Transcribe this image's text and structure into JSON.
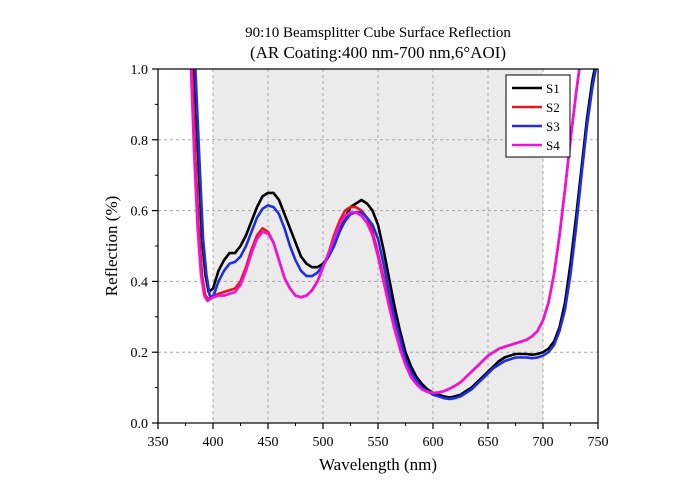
{
  "chart_data": {
    "type": "line",
    "title": "90:10 Beamsplitter Cube Surface Reflection",
    "subtitle": "(AR Coating:400 nm-700 nm,6°AOI)",
    "xlabel": "Wavelength (nm)",
    "ylabel": "Reflection (%)",
    "xlim": [
      350,
      750
    ],
    "ylim": [
      0.0,
      1.0
    ],
    "xticks": [
      350,
      400,
      450,
      500,
      550,
      600,
      650,
      700,
      750
    ],
    "xtick_labels": [
      "350",
      "400",
      "450",
      "500",
      "550",
      "600",
      "650",
      "700",
      "750"
    ],
    "yticks": [
      0.0,
      0.2,
      0.4,
      0.6,
      0.8,
      1.0
    ],
    "ytick_labels": [
      "0.0",
      "0.2",
      "0.4",
      "0.6",
      "0.8",
      "1.0"
    ],
    "grid": true,
    "shaded_band": [
      400,
      700
    ],
    "legend_position": "top-right",
    "series": [
      {
        "name": "S1",
        "color": "#000000",
        "points": [
          [
            383,
            1.0
          ],
          [
            387,
            0.72
          ],
          [
            390,
            0.52
          ],
          [
            393,
            0.42
          ],
          [
            396,
            0.37
          ],
          [
            400,
            0.38
          ],
          [
            405,
            0.43
          ],
          [
            410,
            0.46
          ],
          [
            415,
            0.48
          ],
          [
            420,
            0.48
          ],
          [
            425,
            0.5
          ],
          [
            430,
            0.53
          ],
          [
            435,
            0.57
          ],
          [
            440,
            0.61
          ],
          [
            445,
            0.64
          ],
          [
            450,
            0.65
          ],
          [
            455,
            0.65
          ],
          [
            460,
            0.63
          ],
          [
            465,
            0.59
          ],
          [
            470,
            0.55
          ],
          [
            475,
            0.51
          ],
          [
            480,
            0.47
          ],
          [
            485,
            0.45
          ],
          [
            490,
            0.44
          ],
          [
            495,
            0.44
          ],
          [
            500,
            0.45
          ],
          [
            505,
            0.47
          ],
          [
            510,
            0.5
          ],
          [
            515,
            0.54
          ],
          [
            520,
            0.58
          ],
          [
            525,
            0.61
          ],
          [
            530,
            0.62
          ],
          [
            535,
            0.63
          ],
          [
            540,
            0.62
          ],
          [
            545,
            0.6
          ],
          [
            550,
            0.56
          ],
          [
            555,
            0.49
          ],
          [
            560,
            0.41
          ],
          [
            565,
            0.33
          ],
          [
            570,
            0.26
          ],
          [
            575,
            0.2
          ],
          [
            580,
            0.16
          ],
          [
            585,
            0.13
          ],
          [
            590,
            0.11
          ],
          [
            595,
            0.095
          ],
          [
            600,
            0.085
          ],
          [
            605,
            0.08
          ],
          [
            610,
            0.075
          ],
          [
            615,
            0.072
          ],
          [
            620,
            0.075
          ],
          [
            625,
            0.08
          ],
          [
            630,
            0.09
          ],
          [
            635,
            0.1
          ],
          [
            640,
            0.115
          ],
          [
            645,
            0.13
          ],
          [
            650,
            0.145
          ],
          [
            655,
            0.16
          ],
          [
            660,
            0.175
          ],
          [
            665,
            0.185
          ],
          [
            670,
            0.19
          ],
          [
            675,
            0.195
          ],
          [
            680,
            0.195
          ],
          [
            685,
            0.195
          ],
          [
            690,
            0.193
          ],
          [
            695,
            0.195
          ],
          [
            700,
            0.2
          ],
          [
            705,
            0.21
          ],
          [
            710,
            0.23
          ],
          [
            715,
            0.27
          ],
          [
            720,
            0.34
          ],
          [
            725,
            0.45
          ],
          [
            730,
            0.58
          ],
          [
            735,
            0.72
          ],
          [
            740,
            0.86
          ],
          [
            745,
            0.97
          ],
          [
            747,
            1.0
          ]
        ]
      },
      {
        "name": "S2",
        "color": "#e8141e",
        "points": [
          [
            381,
            1.0
          ],
          [
            384,
            0.75
          ],
          [
            387,
            0.55
          ],
          [
            390,
            0.42
          ],
          [
            393,
            0.36
          ],
          [
            396,
            0.35
          ],
          [
            400,
            0.36
          ],
          [
            405,
            0.365
          ],
          [
            410,
            0.37
          ],
          [
            415,
            0.375
          ],
          [
            420,
            0.38
          ],
          [
            425,
            0.4
          ],
          [
            430,
            0.44
          ],
          [
            435,
            0.49
          ],
          [
            440,
            0.53
          ],
          [
            445,
            0.55
          ],
          [
            450,
            0.54
          ],
          [
            455,
            0.51
          ],
          [
            460,
            0.46
          ],
          [
            465,
            0.41
          ],
          [
            470,
            0.38
          ],
          [
            475,
            0.36
          ],
          [
            480,
            0.355
          ],
          [
            485,
            0.36
          ],
          [
            490,
            0.375
          ],
          [
            495,
            0.4
          ],
          [
            500,
            0.44
          ],
          [
            505,
            0.48
          ],
          [
            510,
            0.53
          ],
          [
            515,
            0.57
          ],
          [
            520,
            0.6
          ],
          [
            525,
            0.61
          ],
          [
            530,
            0.61
          ],
          [
            535,
            0.6
          ],
          [
            540,
            0.58
          ],
          [
            545,
            0.54
          ],
          [
            550,
            0.48
          ],
          [
            555,
            0.41
          ],
          [
            560,
            0.34
          ],
          [
            565,
            0.27
          ],
          [
            570,
            0.21
          ],
          [
            575,
            0.165
          ],
          [
            580,
            0.13
          ],
          [
            585,
            0.11
          ],
          [
            590,
            0.095
          ],
          [
            595,
            0.088
          ],
          [
            600,
            0.085
          ],
          [
            605,
            0.086
          ],
          [
            610,
            0.09
          ],
          [
            615,
            0.097
          ],
          [
            620,
            0.105
          ],
          [
            625,
            0.115
          ],
          [
            630,
            0.13
          ],
          [
            635,
            0.145
          ],
          [
            640,
            0.16
          ],
          [
            645,
            0.175
          ],
          [
            650,
            0.19
          ],
          [
            655,
            0.2
          ],
          [
            660,
            0.21
          ],
          [
            665,
            0.215
          ],
          [
            670,
            0.22
          ],
          [
            675,
            0.225
          ],
          [
            680,
            0.23
          ],
          [
            685,
            0.235
          ],
          [
            690,
            0.245
          ],
          [
            695,
            0.26
          ],
          [
            700,
            0.29
          ],
          [
            705,
            0.34
          ],
          [
            710,
            0.42
          ],
          [
            715,
            0.53
          ],
          [
            720,
            0.66
          ],
          [
            725,
            0.8
          ],
          [
            730,
            0.93
          ],
          [
            733,
            1.0
          ]
        ]
      },
      {
        "name": "S3",
        "color": "#1f2ee0",
        "points": [
          [
            384,
            1.0
          ],
          [
            388,
            0.72
          ],
          [
            391,
            0.52
          ],
          [
            394,
            0.42
          ],
          [
            397,
            0.36
          ],
          [
            400,
            0.355
          ],
          [
            405,
            0.4
          ],
          [
            410,
            0.43
          ],
          [
            415,
            0.45
          ],
          [
            420,
            0.455
          ],
          [
            425,
            0.47
          ],
          [
            430,
            0.5
          ],
          [
            435,
            0.54
          ],
          [
            440,
            0.58
          ],
          [
            445,
            0.605
          ],
          [
            450,
            0.615
          ],
          [
            455,
            0.61
          ],
          [
            460,
            0.59
          ],
          [
            465,
            0.55
          ],
          [
            470,
            0.5
          ],
          [
            475,
            0.46
          ],
          [
            480,
            0.43
          ],
          [
            485,
            0.415
          ],
          [
            490,
            0.415
          ],
          [
            495,
            0.425
          ],
          [
            500,
            0.445
          ],
          [
            505,
            0.47
          ],
          [
            510,
            0.5
          ],
          [
            515,
            0.54
          ],
          [
            520,
            0.57
          ],
          [
            525,
            0.59
          ],
          [
            530,
            0.595
          ],
          [
            535,
            0.595
          ],
          [
            540,
            0.58
          ],
          [
            545,
            0.56
          ],
          [
            550,
            0.52
          ],
          [
            555,
            0.45
          ],
          [
            560,
            0.37
          ],
          [
            565,
            0.3
          ],
          [
            570,
            0.24
          ],
          [
            575,
            0.18
          ],
          [
            580,
            0.145
          ],
          [
            585,
            0.12
          ],
          [
            590,
            0.1
          ],
          [
            595,
            0.09
          ],
          [
            600,
            0.08
          ],
          [
            605,
            0.075
          ],
          [
            610,
            0.07
          ],
          [
            615,
            0.068
          ],
          [
            620,
            0.07
          ],
          [
            625,
            0.075
          ],
          [
            630,
            0.085
          ],
          [
            635,
            0.095
          ],
          [
            640,
            0.11
          ],
          [
            645,
            0.125
          ],
          [
            650,
            0.14
          ],
          [
            655,
            0.155
          ],
          [
            660,
            0.165
          ],
          [
            665,
            0.175
          ],
          [
            670,
            0.18
          ],
          [
            675,
            0.185
          ],
          [
            680,
            0.185
          ],
          [
            685,
            0.185
          ],
          [
            690,
            0.183
          ],
          [
            695,
            0.185
          ],
          [
            700,
            0.19
          ],
          [
            705,
            0.2
          ],
          [
            710,
            0.22
          ],
          [
            715,
            0.26
          ],
          [
            720,
            0.32
          ],
          [
            725,
            0.42
          ],
          [
            730,
            0.55
          ],
          [
            735,
            0.7
          ],
          [
            740,
            0.84
          ],
          [
            745,
            0.95
          ],
          [
            748,
            1.0
          ]
        ]
      },
      {
        "name": "S4",
        "color": "#f012d8",
        "points": [
          [
            380,
            1.0
          ],
          [
            383,
            0.75
          ],
          [
            386,
            0.55
          ],
          [
            389,
            0.42
          ],
          [
            392,
            0.36
          ],
          [
            395,
            0.345
          ],
          [
            400,
            0.355
          ],
          [
            405,
            0.36
          ],
          [
            410,
            0.36
          ],
          [
            415,
            0.365
          ],
          [
            420,
            0.37
          ],
          [
            425,
            0.39
          ],
          [
            430,
            0.43
          ],
          [
            435,
            0.48
          ],
          [
            440,
            0.52
          ],
          [
            445,
            0.54
          ],
          [
            450,
            0.535
          ],
          [
            455,
            0.51
          ],
          [
            460,
            0.46
          ],
          [
            465,
            0.41
          ],
          [
            470,
            0.38
          ],
          [
            475,
            0.36
          ],
          [
            480,
            0.355
          ],
          [
            485,
            0.36
          ],
          [
            490,
            0.375
          ],
          [
            495,
            0.4
          ],
          [
            500,
            0.44
          ],
          [
            505,
            0.48
          ],
          [
            510,
            0.52
          ],
          [
            515,
            0.56
          ],
          [
            520,
            0.585
          ],
          [
            525,
            0.595
          ],
          [
            530,
            0.595
          ],
          [
            535,
            0.585
          ],
          [
            540,
            0.565
          ],
          [
            545,
            0.53
          ],
          [
            550,
            0.47
          ],
          [
            555,
            0.4
          ],
          [
            560,
            0.33
          ],
          [
            565,
            0.265
          ],
          [
            570,
            0.21
          ],
          [
            575,
            0.165
          ],
          [
            580,
            0.13
          ],
          [
            585,
            0.11
          ],
          [
            590,
            0.095
          ],
          [
            595,
            0.088
          ],
          [
            600,
            0.085
          ],
          [
            605,
            0.086
          ],
          [
            610,
            0.09
          ],
          [
            615,
            0.097
          ],
          [
            620,
            0.105
          ],
          [
            625,
            0.115
          ],
          [
            630,
            0.13
          ],
          [
            635,
            0.145
          ],
          [
            640,
            0.16
          ],
          [
            645,
            0.175
          ],
          [
            650,
            0.19
          ],
          [
            655,
            0.2
          ],
          [
            660,
            0.21
          ],
          [
            665,
            0.215
          ],
          [
            670,
            0.22
          ],
          [
            675,
            0.225
          ],
          [
            680,
            0.23
          ],
          [
            685,
            0.235
          ],
          [
            690,
            0.245
          ],
          [
            695,
            0.26
          ],
          [
            700,
            0.29
          ],
          [
            705,
            0.34
          ],
          [
            710,
            0.42
          ],
          [
            715,
            0.53
          ],
          [
            720,
            0.66
          ],
          [
            725,
            0.8
          ],
          [
            730,
            0.93
          ],
          [
            733,
            1.0
          ]
        ]
      }
    ]
  }
}
